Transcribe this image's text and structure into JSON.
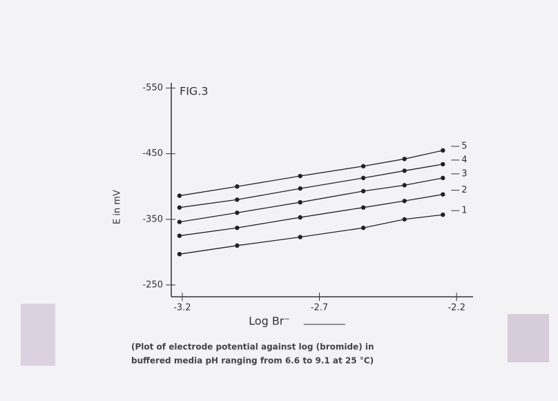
{
  "chart_data": {
    "type": "line",
    "title": "FIG.3",
    "x_label": "Log Br⁻",
    "y_label": "E in mV",
    "caption": [
      "(Plot of electrode potential against log (bromide) in",
      "buffered media pH ranging from 6.6 to 9.1 at 25 °C)"
    ],
    "x": [
      -3.21,
      -3.0,
      -2.77,
      -2.54,
      -2.39,
      -2.25
    ],
    "xlim": [
      -3.24,
      -2.14
    ],
    "xticks": [
      -3.2,
      -2.7,
      -2.2
    ],
    "ylim": [
      -232,
      -558
    ],
    "yticks": [
      -550,
      -450,
      -350,
      -250
    ],
    "color": "#222222",
    "series": [
      {
        "name": "5",
        "values": [
          -386,
          -400,
          -416,
          -431,
          -442,
          -455
        ]
      },
      {
        "name": "4",
        "values": [
          -368,
          -380,
          -397,
          -413,
          -424,
          -434
        ]
      },
      {
        "name": "3",
        "values": [
          -346,
          -360,
          -376,
          -393,
          -402,
          -413
        ]
      },
      {
        "name": "2",
        "values": [
          -325,
          -337,
          -353,
          -368,
          -378,
          -388
        ]
      },
      {
        "name": "1",
        "values": [
          -297,
          -310,
          -323,
          -337,
          -350,
          -357
        ]
      }
    ]
  }
}
